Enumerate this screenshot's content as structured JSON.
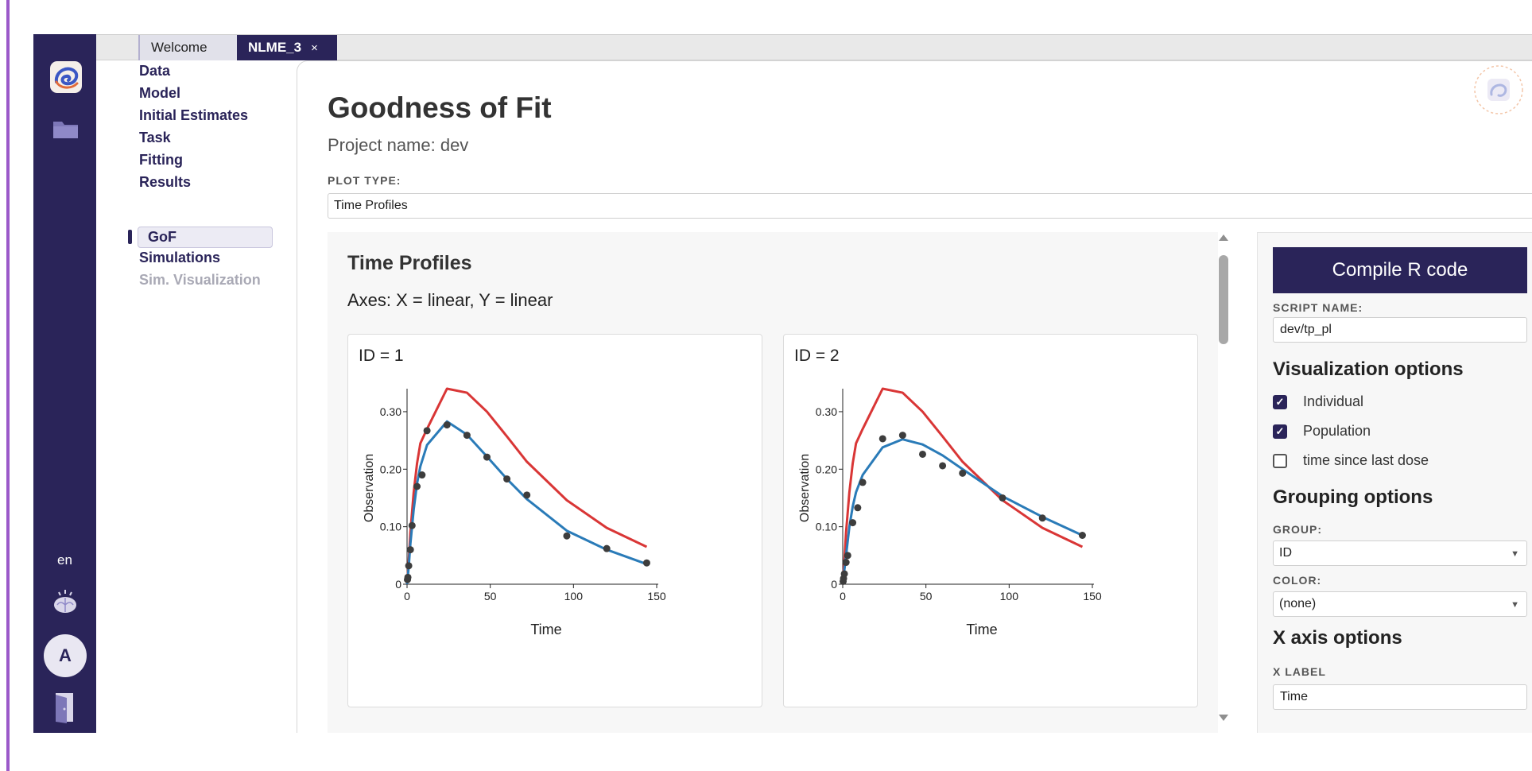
{
  "colors": {
    "rail": "#2a2459",
    "accent": "#2a2459",
    "individual_line": "#2a7bb8",
    "population_line": "#d93636",
    "observed_points": "#3d3d3d"
  },
  "rail": {
    "language": "en",
    "avatar_letter": "A",
    "icons": [
      "app-logo-icon",
      "folder-icon",
      "brain-icon",
      "logout-door-icon"
    ]
  },
  "tabs": [
    {
      "label": "Welcome"
    },
    {
      "label": "NLME_3",
      "close": "×"
    }
  ],
  "nav": {
    "items": [
      {
        "label": "Data"
      },
      {
        "label": "Model"
      },
      {
        "label": "Initial Estimates"
      },
      {
        "label": "Task"
      },
      {
        "label": "Fitting"
      },
      {
        "label": "Results"
      },
      {
        "label": "GoF"
      },
      {
        "label": "Simulations"
      },
      {
        "label": "Sim. Visualization"
      }
    ],
    "active": "GoF",
    "disabled": "Sim. Visualization"
  },
  "page": {
    "title": "Goodness of Fit",
    "project_name": "Project name: dev",
    "plot_type_label": "PLOT TYPE:",
    "plot_type_value": "Time Profiles"
  },
  "plot_panel": {
    "title": "Time Profiles",
    "axes_text": "Axes: X = linear, Y = linear"
  },
  "chart_data": [
    {
      "type": "line",
      "title": "ID = 1",
      "xlabel": "Time",
      "ylabel": "Observation",
      "xlim": [
        0,
        150
      ],
      "ylim": [
        0,
        0.34
      ],
      "xticks": [
        "0",
        "50",
        "100",
        "150"
      ],
      "yticks": [
        "0",
        "0.10",
        "0.20",
        "0.30"
      ],
      "series": [
        {
          "kind": "line",
          "color": "#d93636",
          "x": [
            0,
            0.5,
            1,
            2,
            4,
            6,
            8,
            12,
            24,
            36,
            48,
            60,
            72,
            96,
            120,
            144
          ],
          "y": [
            0,
            0.02,
            0.04,
            0.09,
            0.16,
            0.21,
            0.245,
            0.27,
            0.34,
            0.333,
            0.3,
            0.257,
            0.213,
            0.146,
            0.098,
            0.065
          ]
        },
        {
          "kind": "line",
          "color": "#2a7bb8",
          "x": [
            0,
            0.5,
            1,
            2,
            4,
            6,
            8,
            12,
            24,
            36,
            48,
            60,
            72,
            96,
            120,
            144
          ],
          "y": [
            0,
            0.015,
            0.03,
            0.07,
            0.13,
            0.175,
            0.205,
            0.242,
            0.283,
            0.26,
            0.222,
            0.183,
            0.148,
            0.093,
            0.06,
            0.035
          ]
        },
        {
          "kind": "points",
          "color": "#3d3d3d",
          "x": [
            0.25,
            0.5,
            1,
            2,
            3,
            6,
            9,
            12,
            24,
            36,
            48,
            60,
            72,
            96,
            120,
            144
          ],
          "y": [
            0.008,
            0.012,
            0.032,
            0.06,
            0.102,
            0.17,
            0.19,
            0.267,
            0.277,
            0.259,
            0.221,
            0.183,
            0.155,
            0.084,
            0.062,
            0.037
          ]
        }
      ]
    },
    {
      "type": "line",
      "title": "ID = 2",
      "xlabel": "Time",
      "ylabel": "Observation",
      "xlim": [
        0,
        150
      ],
      "ylim": [
        0,
        0.34
      ],
      "xticks": [
        "0",
        "50",
        "100",
        "150"
      ],
      "yticks": [
        "0",
        "0.10",
        "0.20",
        "0.30"
      ],
      "series": [
        {
          "kind": "line",
          "color": "#d93636",
          "x": [
            0,
            0.5,
            1,
            2,
            4,
            6,
            8,
            12,
            24,
            36,
            48,
            60,
            72,
            96,
            120,
            144
          ],
          "y": [
            0,
            0.02,
            0.04,
            0.09,
            0.16,
            0.21,
            0.245,
            0.27,
            0.34,
            0.333,
            0.3,
            0.257,
            0.213,
            0.146,
            0.098,
            0.065
          ]
        },
        {
          "kind": "line",
          "color": "#2a7bb8",
          "x": [
            0,
            0.5,
            1,
            2,
            4,
            6,
            8,
            12,
            24,
            36,
            48,
            60,
            72,
            96,
            120,
            144
          ],
          "y": [
            0,
            0.012,
            0.025,
            0.05,
            0.1,
            0.135,
            0.16,
            0.19,
            0.238,
            0.252,
            0.243,
            0.224,
            0.2,
            0.153,
            0.117,
            0.085
          ]
        },
        {
          "kind": "points",
          "color": "#3d3d3d",
          "x": [
            0.25,
            0.5,
            1,
            2,
            3,
            6,
            9,
            12,
            24,
            36,
            48,
            60,
            72,
            96,
            120,
            144
          ],
          "y": [
            0.005,
            0.01,
            0.018,
            0.038,
            0.05,
            0.107,
            0.133,
            0.177,
            0.253,
            0.259,
            0.226,
            0.206,
            0.193,
            0.15,
            0.115,
            0.085
          ]
        }
      ]
    }
  ],
  "side": {
    "compile_button": "Compile R code",
    "script_name_label": "SCRIPT NAME:",
    "script_name_value": "dev/tp_pl",
    "visualization_title": "Visualization options",
    "options": [
      {
        "label": "Individual",
        "checked": true
      },
      {
        "label": "Population",
        "checked": true
      },
      {
        "label": "time since last dose",
        "checked": false
      }
    ],
    "grouping_title": "Grouping options",
    "group_label": "GROUP:",
    "group_value": "ID",
    "color_label": "COLOR:",
    "color_value": "(none)",
    "xaxis_title": "X axis options",
    "xlabel_label": "X LABEL",
    "xlabel_value": "Time"
  }
}
